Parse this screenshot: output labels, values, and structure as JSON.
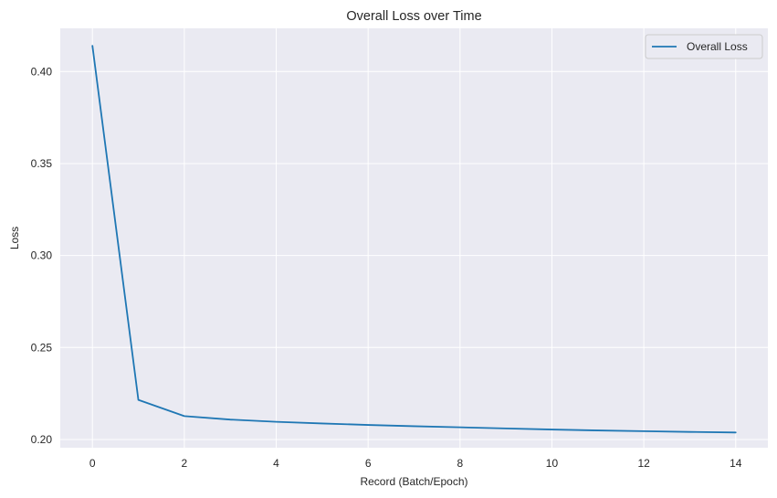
{
  "chart_data": {
    "type": "line",
    "title": "Overall Loss over Time",
    "xlabel": "Record (Batch/Epoch)",
    "ylabel": "Loss",
    "xlim": [
      -0.7,
      14.7
    ],
    "ylim": [
      0.1955,
      0.4235
    ],
    "xticks": [
      0,
      2,
      4,
      6,
      8,
      10,
      12,
      14
    ],
    "xtick_labels": [
      "0",
      "2",
      "4",
      "6",
      "8",
      "10",
      "12",
      "14"
    ],
    "yticks": [
      0.2,
      0.25,
      0.3,
      0.35,
      0.4
    ],
    "ytick_labels": [
      "0.20",
      "0.25",
      "0.30",
      "0.35",
      "0.40"
    ],
    "grid": true,
    "legend_position": "top-right",
    "series": [
      {
        "name": "Overall Loss",
        "color": "#1f77b4",
        "x": [
          0,
          1,
          2,
          3,
          4,
          5,
          6,
          7,
          8,
          9,
          10,
          11,
          12,
          13,
          14
        ],
        "y": [
          0.414,
          0.2215,
          0.2127,
          0.2108,
          0.2096,
          0.2087,
          0.2079,
          0.2072,
          0.2066,
          0.206,
          0.2054,
          0.2049,
          0.2045,
          0.2041,
          0.2038
        ]
      }
    ]
  },
  "colors": {
    "plot_background": "#eaeaf2",
    "grid": "#ffffff",
    "text": "#262626"
  }
}
